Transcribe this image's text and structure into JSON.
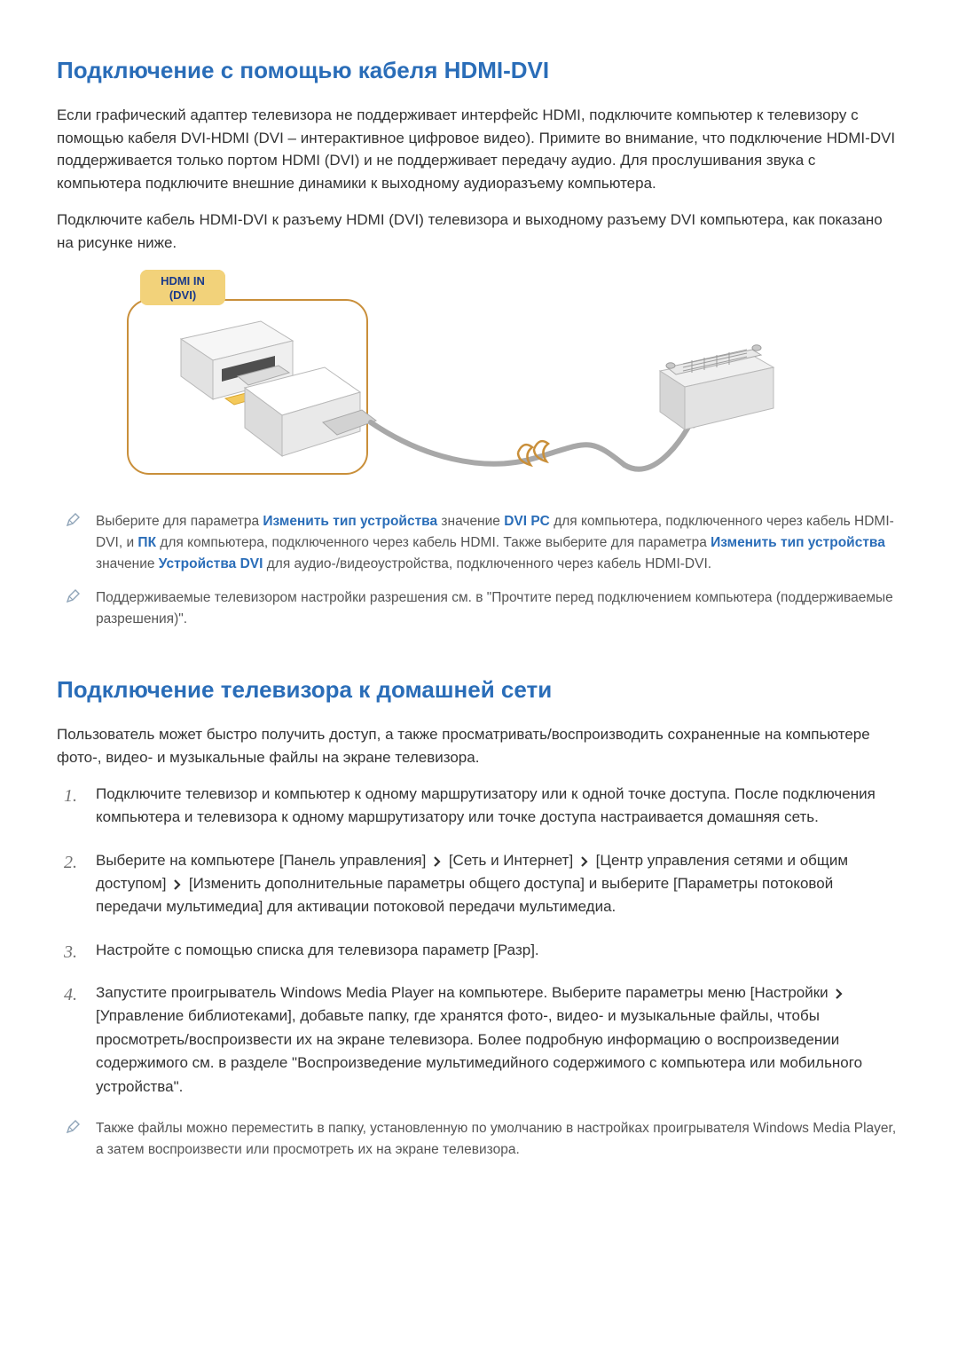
{
  "section1": {
    "heading": "Подключение с помощью кабеля HDMI-DVI",
    "para1": "Если графический адаптер телевизора не поддерживает интерфейс HDMI, подключите компьютер к телевизору с помощью кабеля DVI-HDMI (DVI – интерактивное цифровое видео). Примите во внимание, что подключение HDMI-DVI поддерживается только портом HDMI (DVI) и не поддерживает передачу аудио. Для прослушивания звука с компьютера подключите внешние динамики к выходному аудиоразъему компьютера.",
    "para2": "Подключите кабель HDMI-DVI к разъему HDMI (DVI) телевизора и выходному разъему DVI компьютера, как показано на рисунке ниже.",
    "diagram": {
      "label_line1": "HDMI IN",
      "label_line2": "(DVI)",
      "colors": {
        "tab_fill": "#f2d27a",
        "tab_text": "#1a3a8a",
        "panel_stroke": "#c98f3a",
        "panel_fill": "#ffffff",
        "port_body": "#f4f4f4",
        "port_shadow": "#d6d6d6",
        "port_slot": "#5a5a5a",
        "cable_plug": "#ffffff",
        "cable_plug_edge": "#b8b8b8",
        "cable_plug_accent": "#f4c95a",
        "cable": "#a8a8a8",
        "dvi_body": "#e9e9e9",
        "dvi_body_edge": "#b8b8b8",
        "dvi_grid": "#9c9c9c",
        "dvi_screw": "#c0c0c0"
      }
    },
    "note1": {
      "t0": "Выберите для параметра ",
      "b0": "Изменить тип устройства",
      "t1": " значение ",
      "b1": "DVI PC",
      "t2": " для компьютера, подключенного через кабель HDMI-DVI, и ",
      "b2": "ПК",
      "t3": " для компьютера, подключенного через кабель HDMI. Также выберите для параметра ",
      "b3": "Изменить тип устройства",
      "t4": " значение ",
      "b4": "Устройства DVI",
      "t5": " для аудио-/видеоустройства, подключенного через кабель HDMI-DVI."
    },
    "note2": "Поддерживаемые телевизором настройки разрешения см. в \"Прочтите перед подключением компьютера (поддерживаемые разрешения)\"."
  },
  "section2": {
    "heading": "Подключение телевизора к домашней сети",
    "intro": "Пользователь может быстро получить доступ, а также просматривать/воспроизводить сохраненные на компьютере фото-, видео- и музыкальные файлы на экране телевизора.",
    "steps": [
      "Подключите телевизор и компьютер к одному маршрутизатору или к одной точке доступа. После подключения компьютера и телевизора к одному маршрутизатору или точке доступа настраивается домашняя сеть.",
      {
        "parts": [
          "Выберите на компьютере [Панель управления] ",
          {
            "chev": true
          },
          " [Сеть и Интернет] ",
          {
            "chev": true
          },
          " [Центр управления сетями и общим доступом] ",
          {
            "chev": true
          },
          " [Изменить дополнительные параметры общего доступа] и выберите [Параметры потоковой передачи мультимедиа] для активации потоковой передачи мультимедиа."
        ]
      },
      "Настройте с помощью списка для телевизора параметр [Разр].",
      {
        "parts": [
          "Запустите проигрыватель Windows Media Player на компьютере. Выберите параметры меню [Настройки ",
          {
            "chev": true
          },
          " [Управление библиотеками], добавьте папку, где хранятся фото-, видео- и музыкальные файлы, чтобы просмотреть/воспроизвести их на экране телевизора. Более подробную информацию о воспроизведении содержимого см. в разделе \"Воспроизведение мультимедийного содержимого с компьютера или мобильного устройства\"."
        ]
      }
    ],
    "note": "Также файлы можно переместить в папку, установленную по умолчанию в настройках проигрывателя Windows Media Player, а затем воспроизвести или просмотреть их на экране телевизора."
  }
}
